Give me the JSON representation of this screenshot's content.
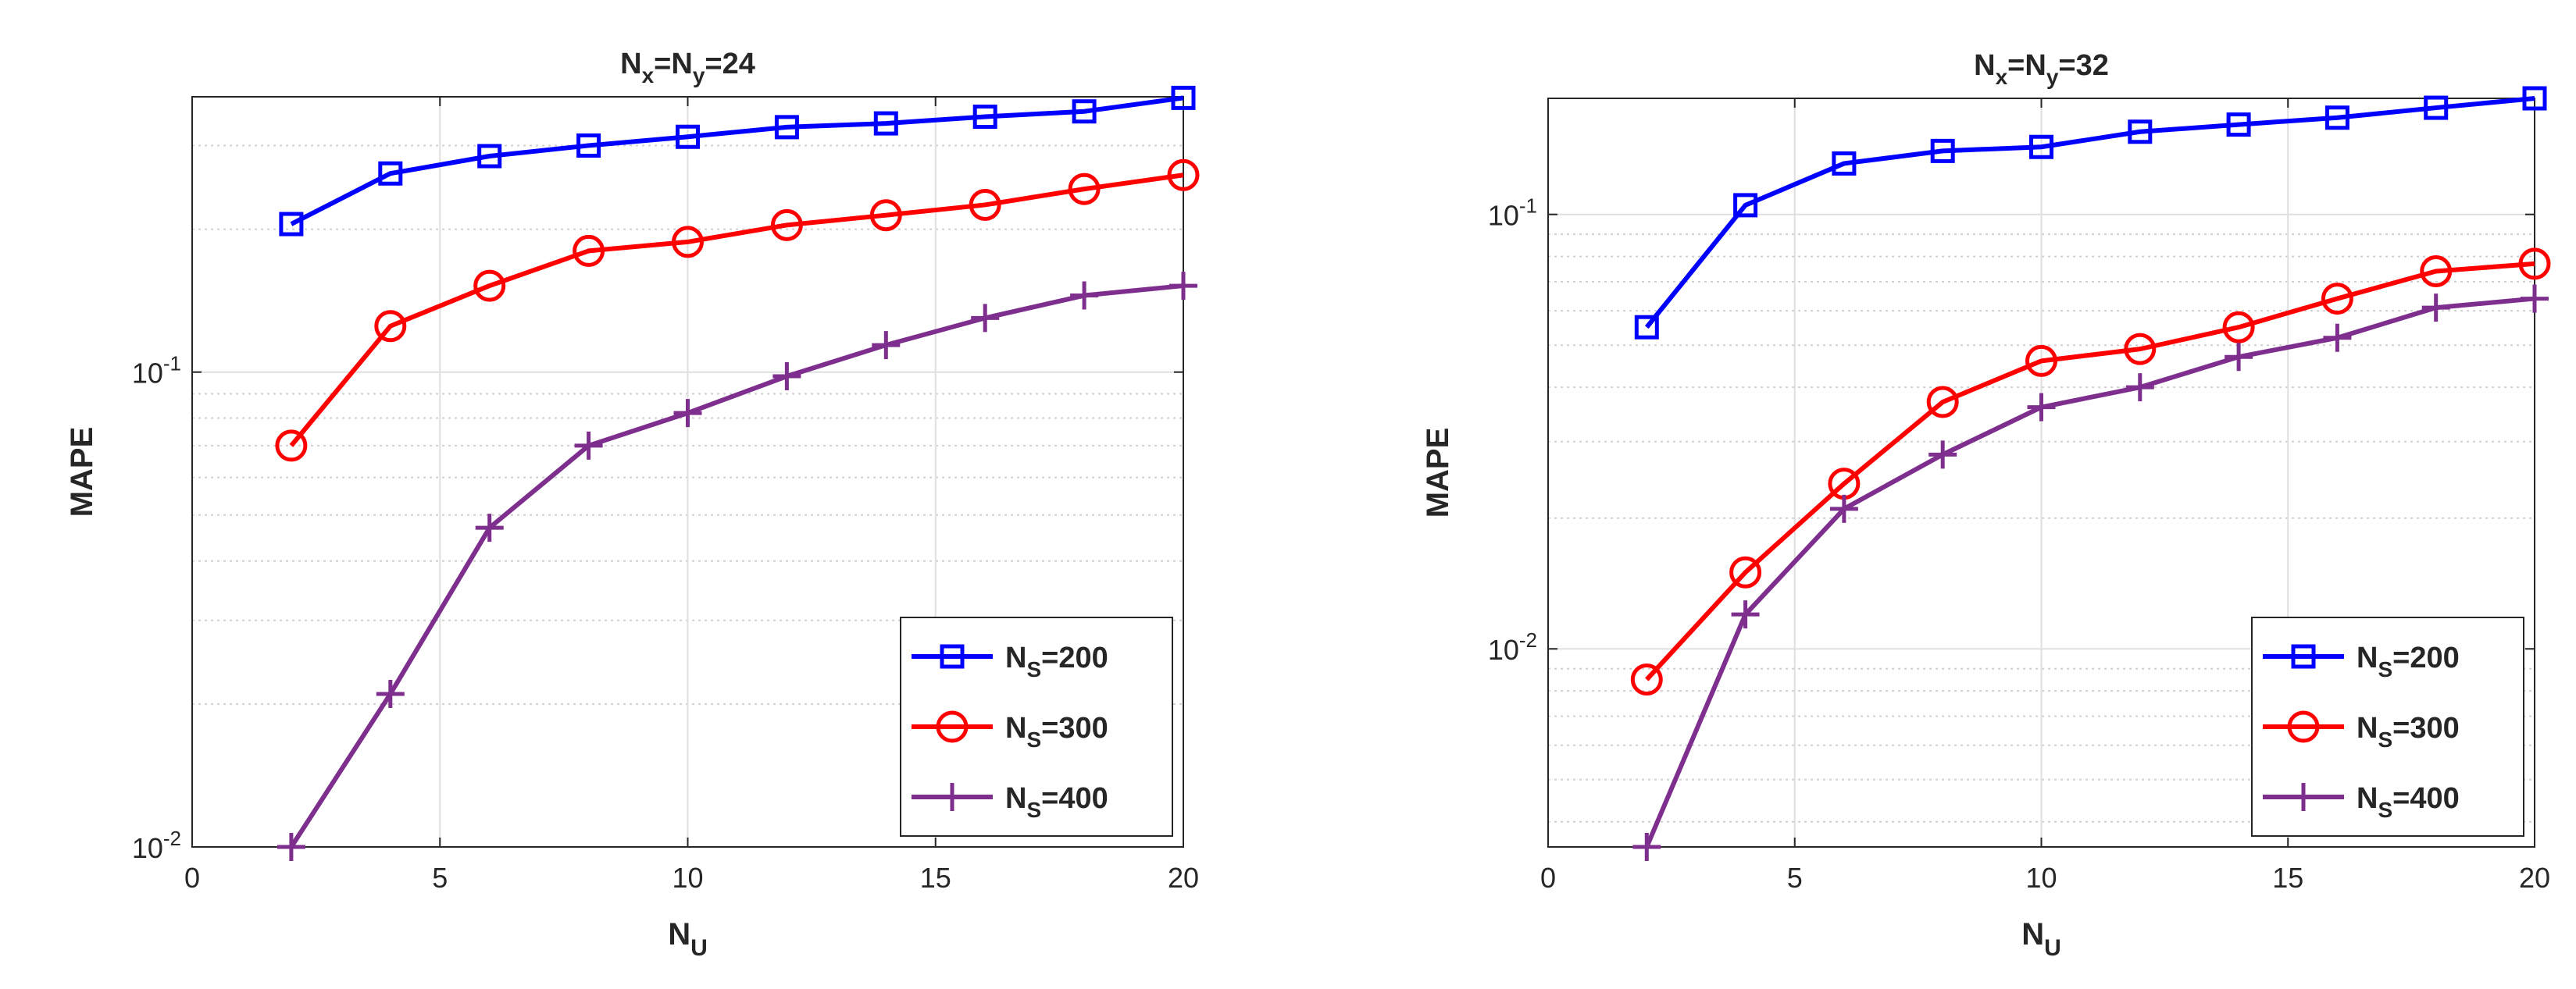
{
  "figure": {
    "ylabel": "MAPE",
    "xlabel_main": "N",
    "xlabel_sub": "U",
    "colors": {
      "blue": "#0000FF",
      "red": "#FF0000",
      "purple": "#7E2F8E",
      "axis": "#262626",
      "grid": "#DFDFDF"
    }
  },
  "chart_data": [
    {
      "type": "line",
      "title_parts": [
        "N",
        "x",
        "=N",
        "y",
        "=24"
      ],
      "xlabel": "NU",
      "ylabel": "MAPE",
      "yscale": "log",
      "xlim": [
        0,
        20
      ],
      "ylim": [
        0.01,
        0.38
      ],
      "xticks": [
        0,
        5,
        10,
        15,
        20
      ],
      "xtick_labels": [
        "0",
        "5",
        "10",
        "15",
        "20"
      ],
      "yticks": [
        0.01,
        0.1
      ],
      "ytick_labels": [
        {
          "base": "10",
          "exp": "-2"
        },
        {
          "base": "10",
          "exp": "-1"
        }
      ],
      "x": [
        2,
        4,
        6,
        8,
        10,
        12,
        14,
        16,
        18,
        20
      ],
      "legend_position": "bottom-right",
      "series": [
        {
          "name": "NS=200",
          "label_main": "N",
          "label_sub": "S",
          "label_rest": "=200",
          "marker": "square",
          "color": "#0000FF",
          "values": [
            0.205,
            0.262,
            0.285,
            0.3,
            0.313,
            0.328,
            0.334,
            0.345,
            0.354,
            0.378
          ]
        },
        {
          "name": "NS=300",
          "label_main": "N",
          "label_sub": "S",
          "label_rest": "=300",
          "marker": "circle",
          "color": "#FF0000",
          "values": [
            0.07,
            0.125,
            0.152,
            0.18,
            0.188,
            0.204,
            0.214,
            0.225,
            0.243,
            0.26
          ]
        },
        {
          "name": "NS=400",
          "label_main": "N",
          "label_sub": "S",
          "label_rest": "=400",
          "marker": "plus",
          "color": "#7E2F8E",
          "values": [
            0.01,
            0.021,
            0.047,
            0.07,
            0.082,
            0.098,
            0.114,
            0.13,
            0.145,
            0.152
          ]
        }
      ]
    },
    {
      "type": "line",
      "title_parts": [
        "N",
        "x",
        "=N",
        "y",
        "=32"
      ],
      "xlabel": "NU",
      "ylabel": "MAPE",
      "yscale": "log",
      "xlim": [
        0,
        20
      ],
      "ylim": [
        0.0035,
        0.185
      ],
      "xticks": [
        0,
        5,
        10,
        15,
        20
      ],
      "xtick_labels": [
        "0",
        "5",
        "10",
        "15",
        "20"
      ],
      "yticks": [
        0.01,
        0.1
      ],
      "ytick_labels": [
        {
          "base": "10",
          "exp": "-2"
        },
        {
          "base": "10",
          "exp": "-1"
        }
      ],
      "x": [
        2,
        4,
        6,
        8,
        10,
        12,
        14,
        16,
        18,
        20
      ],
      "legend_position": "bottom-right",
      "series": [
        {
          "name": "NS=200",
          "label_main": "N",
          "label_sub": "S",
          "label_rest": "=200",
          "marker": "square",
          "color": "#0000FF",
          "values": [
            0.055,
            0.105,
            0.131,
            0.14,
            0.143,
            0.155,
            0.161,
            0.167,
            0.176,
            0.185
          ]
        },
        {
          "name": "NS=300",
          "label_main": "N",
          "label_sub": "S",
          "label_rest": "=300",
          "marker": "circle",
          "color": "#FF0000",
          "values": [
            0.0085,
            0.015,
            0.024,
            0.037,
            0.046,
            0.049,
            0.055,
            0.064,
            0.074,
            0.077
          ]
        },
        {
          "name": "NS=400",
          "label_main": "N",
          "label_sub": "S",
          "label_rest": "=400",
          "marker": "plus",
          "color": "#7E2F8E",
          "values": [
            0.0035,
            0.012,
            0.021,
            0.028,
            0.036,
            0.04,
            0.047,
            0.052,
            0.061,
            0.064
          ]
        }
      ]
    }
  ]
}
